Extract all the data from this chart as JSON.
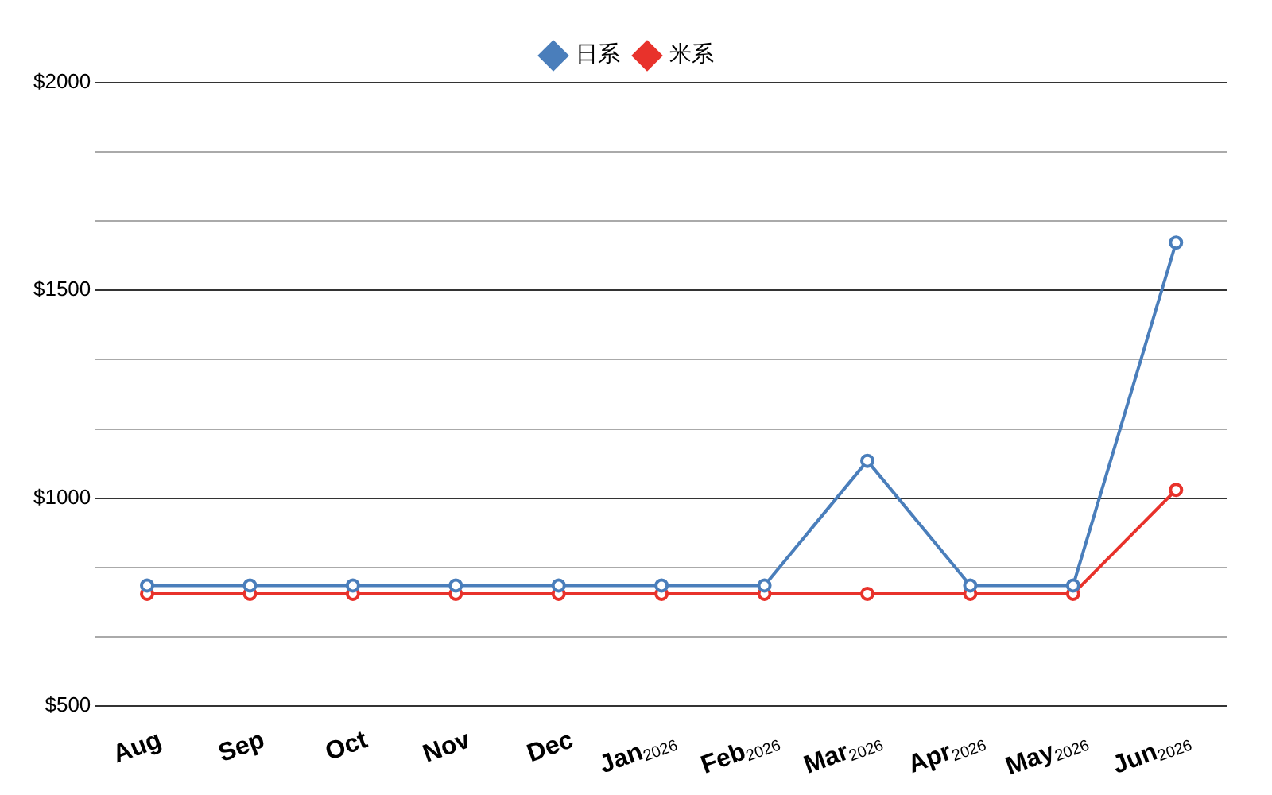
{
  "chart_data": {
    "type": "line",
    "categories": [
      "Aug",
      "Sep",
      "Oct",
      "Nov",
      "Dec",
      "Jan$_{2026}$",
      "Feb$_{2026}$",
      "Mar$_{2026}$",
      "Apr$_{2026}$",
      "May$_{2026}$",
      "Jun$_{2026}$"
    ],
    "series": [
      {
        "name": "日系",
        "color": "#4a7ebb",
        "values": [
          790,
          790,
          790,
          790,
          790,
          790,
          790,
          1090,
          790,
          790,
          1615
        ]
      },
      {
        "name": "米系",
        "color": "#e8322b",
        "values": [
          770,
          770,
          770,
          770,
          770,
          770,
          770,
          770,
          770,
          770,
          1020
        ]
      }
    ],
    "ylim": [
      500,
      2000
    ],
    "yticks": [
      {
        "value": 500,
        "label": "$500"
      },
      {
        "value": 666.67,
        "label": null
      },
      {
        "value": 833.33,
        "label": null
      },
      {
        "value": 1000,
        "label": "$1000"
      },
      {
        "value": 1166.67,
        "label": null
      },
      {
        "value": 1333.33,
        "label": null
      },
      {
        "value": 1500,
        "label": "$1500"
      },
      {
        "value": 1666.67,
        "label": null
      },
      {
        "value": 1833.33,
        "label": null
      },
      {
        "value": 2000,
        "label": "$2000"
      }
    ],
    "grid": "y",
    "legend": "top",
    "marker": "circle",
    "line_style": "solid"
  }
}
